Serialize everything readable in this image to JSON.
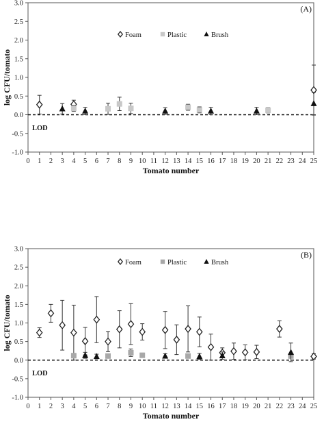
{
  "chart_data": [
    {
      "type": "scatter",
      "panel_label": "(A)",
      "xlabel": "Tomato number",
      "ylabel": "log CFU/tomato",
      "xlim": [
        0,
        25
      ],
      "ylim": [
        -1.0,
        3.0
      ],
      "x_ticks": [
        "0",
        "1",
        "2",
        "3",
        "4",
        "5",
        "6",
        "7",
        "8",
        "9",
        "10",
        "11",
        "12",
        "13",
        "14",
        "15",
        "16",
        "17",
        "18",
        "19",
        "20",
        "21",
        "22",
        "23",
        "24",
        "25"
      ],
      "y_ticks": [
        "-1.0",
        "-0.5",
        "0.0",
        "0.5",
        "1.0",
        "1.5",
        "2.0",
        "2.5",
        "3.0"
      ],
      "reference_line": {
        "label": "LOD",
        "y": 0.0
      },
      "legend": {
        "placement": "top-center",
        "entries": [
          "Foam",
          "Plastic",
          "Brush"
        ]
      },
      "series": [
        {
          "name": "Foam",
          "marker": "open-diamond",
          "color": "#222222",
          "points": [
            {
              "x": 1,
              "y": 0.27,
              "err": 0.25
            },
            {
              "x": 4,
              "y": 0.28,
              "err": 0.11
            },
            {
              "x": 25,
              "y": 0.66,
              "err": 0.67
            }
          ]
        },
        {
          "name": "Plastic",
          "marker": "filled-square",
          "color": "#c8c8c8",
          "points": [
            {
              "x": 4,
              "y": 0.17,
              "err": 0.08
            },
            {
              "x": 7,
              "y": 0.16,
              "err": 0.15
            },
            {
              "x": 8,
              "y": 0.29,
              "err": 0.18
            },
            {
              "x": 9,
              "y": 0.17,
              "err": 0.14
            },
            {
              "x": 14,
              "y": 0.2,
              "err": 0.08
            },
            {
              "x": 15,
              "y": 0.13,
              "err": 0.08
            },
            {
              "x": 21,
              "y": 0.12,
              "err": 0.07
            }
          ]
        },
        {
          "name": "Brush",
          "marker": "filled-triangle",
          "color": "#111111",
          "points": [
            {
              "x": 3,
              "y": 0.16,
              "err": 0.14
            },
            {
              "x": 5,
              "y": 0.1,
              "err": 0.1
            },
            {
              "x": 12,
              "y": 0.1,
              "err": 0.09
            },
            {
              "x": 16,
              "y": 0.1,
              "err": 0.1
            },
            {
              "x": 20,
              "y": 0.1,
              "err": 0.1
            },
            {
              "x": 25,
              "y": 0.3,
              "err": 0.3
            }
          ]
        }
      ]
    },
    {
      "type": "scatter",
      "panel_label": "(B)",
      "xlabel": "Tomato number",
      "ylabel": "log CFU/tomato",
      "xlim": [
        0,
        25
      ],
      "ylim": [
        -1.0,
        3.0
      ],
      "x_ticks": [
        "0",
        "1",
        "2",
        "3",
        "4",
        "5",
        "6",
        "7",
        "8",
        "9",
        "10",
        "11",
        "12",
        "13",
        "14",
        "15",
        "16",
        "17",
        "18",
        "19",
        "20",
        "21",
        "22",
        "23",
        "24",
        "25"
      ],
      "y_ticks": [
        "-1.0",
        "-0.5",
        "0.0",
        "0.5",
        "1.0",
        "1.5",
        "2.0",
        "2.5",
        "3.0"
      ],
      "reference_line": {
        "label": "LOD",
        "y": 0.0
      },
      "legend": {
        "placement": "top-center",
        "entries": [
          "Foam",
          "Plastic",
          "Brush"
        ]
      },
      "series": [
        {
          "name": "Foam",
          "marker": "open-diamond",
          "color": "#222222",
          "points": [
            {
              "x": 1,
              "y": 0.74,
              "err": 0.13
            },
            {
              "x": 2,
              "y": 1.26,
              "err": 0.24
            },
            {
              "x": 3,
              "y": 0.94,
              "err": 0.67
            },
            {
              "x": 4,
              "y": 0.74,
              "err": 0.74
            },
            {
              "x": 5,
              "y": 0.51,
              "err": 0.37
            },
            {
              "x": 6,
              "y": 1.09,
              "err": 0.62
            },
            {
              "x": 7,
              "y": 0.5,
              "err": 0.27
            },
            {
              "x": 8,
              "y": 0.83,
              "err": 0.5
            },
            {
              "x": 9,
              "y": 0.97,
              "err": 0.55
            },
            {
              "x": 10,
              "y": 0.76,
              "err": 0.22
            },
            {
              "x": 12,
              "y": 0.81,
              "err": 0.5
            },
            {
              "x": 13,
              "y": 0.55,
              "err": 0.4
            },
            {
              "x": 14,
              "y": 0.84,
              "err": 0.62
            },
            {
              "x": 15,
              "y": 0.76,
              "err": 0.4
            },
            {
              "x": 16,
              "y": 0.35,
              "err": 0.35
            },
            {
              "x": 17,
              "y": 0.2,
              "err": 0.13
            },
            {
              "x": 18,
              "y": 0.24,
              "err": 0.22
            },
            {
              "x": 19,
              "y": 0.21,
              "err": 0.2
            },
            {
              "x": 20,
              "y": 0.22,
              "err": 0.18
            },
            {
              "x": 22,
              "y": 0.84,
              "err": 0.22
            },
            {
              "x": 25,
              "y": 0.1,
              "err": 0.07
            }
          ]
        },
        {
          "name": "Plastic",
          "marker": "filled-square",
          "color": "#a8a8a8",
          "points": [
            {
              "x": 4,
              "y": 0.12,
              "err": 0.05
            },
            {
              "x": 7,
              "y": 0.11,
              "err": 0.05
            },
            {
              "x": 9,
              "y": 0.2,
              "err": 0.1
            },
            {
              "x": 10,
              "y": 0.13,
              "err": 0.06
            },
            {
              "x": 14,
              "y": 0.11,
              "err": 0.05
            },
            {
              "x": 23,
              "y": 0.11,
              "err": 0.05
            }
          ]
        },
        {
          "name": "Brush",
          "marker": "filled-triangle",
          "color": "#111111",
          "points": [
            {
              "x": 5,
              "y": 0.13,
              "err": 0.08
            },
            {
              "x": 6,
              "y": 0.1,
              "err": 0.06
            },
            {
              "x": 12,
              "y": 0.11,
              "err": 0.06
            },
            {
              "x": 15,
              "y": 0.1,
              "err": 0.08
            },
            {
              "x": 17,
              "y": 0.12,
              "err": 0.1
            },
            {
              "x": 23,
              "y": 0.21,
              "err": 0.25
            }
          ]
        }
      ]
    }
  ]
}
